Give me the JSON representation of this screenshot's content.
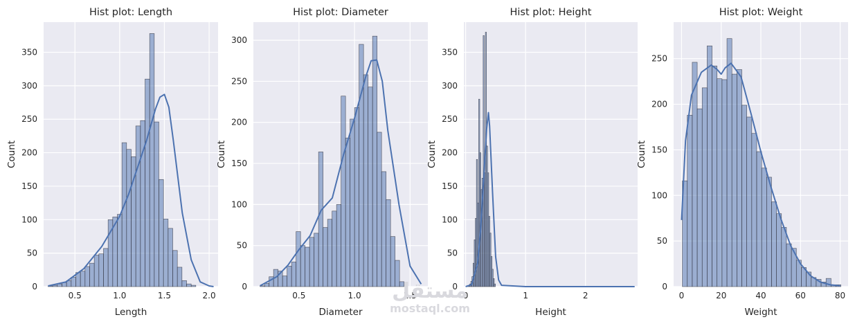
{
  "watermark": {
    "logo_text": "مستقل",
    "url": "mostaql.com"
  },
  "colors": {
    "background": "#eaeaf2",
    "grid": "#ffffff",
    "bar_fill": "#4c72b0",
    "bar_alpha": 0.5,
    "bar_edge": "#2f2f3a",
    "kde": "#4c72b0",
    "text": "#262626"
  },
  "chart_data": [
    {
      "type": "bar",
      "title": "Hist plot: Length",
      "xlabel": "Length",
      "ylabel": "Count",
      "xlim": [
        0.15,
        2.1
      ],
      "ylim": [
        0,
        395
      ],
      "xticks": [
        0.5,
        1.0,
        1.5,
        2.0
      ],
      "xtick_labels": [
        "0.5",
        "1.0",
        "1.5",
        "2.0"
      ],
      "yticks": [
        0,
        50,
        100,
        150,
        200,
        250,
        300,
        350
      ],
      "grid": true,
      "bins": {
        "start": 0.2,
        "width": 0.0516
      },
      "values": [
        1,
        2,
        4,
        6,
        9,
        14,
        21,
        23,
        30,
        35,
        47,
        49,
        57,
        100,
        104,
        108,
        215,
        205,
        194,
        240,
        248,
        310,
        378,
        246,
        160,
        101,
        87,
        54,
        29,
        9,
        4,
        2
      ],
      "kde": {
        "x": [
          0.2,
          0.4,
          0.6,
          0.8,
          1.0,
          1.1,
          1.2,
          1.3,
          1.4,
          1.45,
          1.5,
          1.55,
          1.6,
          1.7,
          1.8,
          1.9,
          2.0,
          2.05
        ],
        "y": [
          1,
          7,
          27,
          60,
          105,
          138,
          178,
          218,
          265,
          283,
          287,
          268,
          218,
          110,
          40,
          7,
          1,
          0
        ]
      }
    },
    {
      "type": "bar",
      "title": "Hist plot: Diameter",
      "xlabel": "Diameter",
      "ylabel": "Count",
      "xlim": [
        0.09,
        1.66
      ],
      "ylim": [
        0,
        322
      ],
      "xticks": [
        0.5,
        1.0,
        1.5
      ],
      "xtick_labels": [
        "0.5",
        "1.0",
        "1.5"
      ],
      "yticks": [
        0,
        50,
        100,
        150,
        200,
        250,
        300
      ],
      "grid": true,
      "bins": {
        "start": 0.15,
        "width": 0.0405
      },
      "values": [
        1,
        4,
        12,
        21,
        19,
        13,
        25,
        30,
        67,
        50,
        48,
        60,
        65,
        164,
        72,
        82,
        92,
        100,
        232,
        181,
        204,
        218,
        295,
        258,
        243,
        305,
        188,
        140,
        106,
        61,
        32,
        6
      ],
      "kde": {
        "x": [
          0.15,
          0.3,
          0.4,
          0.5,
          0.6,
          0.7,
          0.8,
          0.9,
          1.0,
          1.1,
          1.15,
          1.2,
          1.25,
          1.3,
          1.4,
          1.5,
          1.6
        ],
        "y": [
          1,
          12,
          26,
          45,
          62,
          93,
          108,
          160,
          205,
          255,
          275,
          276,
          250,
          190,
          100,
          25,
          3
        ]
      }
    },
    {
      "type": "bar",
      "title": "Hist plot: Height",
      "xlabel": "Height",
      "ylabel": "Count",
      "xlim": [
        -0.03,
        2.87
      ],
      "ylim": [
        0,
        395
      ],
      "xticks": [
        0,
        1,
        2
      ],
      "xtick_labels": [
        "0",
        "1",
        "2"
      ],
      "yticks": [
        0,
        50,
        100,
        150,
        200,
        250,
        300,
        350
      ],
      "grid": true,
      "bins": {
        "start": 0.03,
        "width": 0.0187
      },
      "values": [
        1,
        2,
        4,
        8,
        15,
        35,
        70,
        102,
        190,
        125,
        280,
        200,
        145,
        162,
        375,
        170,
        380,
        210,
        170,
        105,
        80,
        45,
        26,
        12,
        4
      ],
      "kde": {
        "x": [
          0.0,
          0.1,
          0.2,
          0.25,
          0.3,
          0.35,
          0.38,
          0.4,
          0.45,
          0.5,
          0.55,
          0.6,
          1.0,
          2.0,
          2.82
        ],
        "y": [
          0,
          3,
          35,
          85,
          160,
          235,
          260,
          240,
          140,
          45,
          10,
          2,
          0,
          0,
          0
        ]
      }
    },
    {
      "type": "bar",
      "title": "Hist plot: Weight",
      "xlabel": "Weight",
      "ylabel": "Count",
      "xlim": [
        -4,
        84
      ],
      "ylim": [
        0,
        290
      ],
      "xticks": [
        0,
        20,
        40,
        60,
        80
      ],
      "xtick_labels": [
        "0",
        "20",
        "40",
        "60",
        "80"
      ],
      "yticks": [
        0,
        50,
        100,
        150,
        200,
        250
      ],
      "grid": true,
      "bins": {
        "start": 0.4,
        "width": 2.5
      },
      "values": [
        116,
        188,
        246,
        195,
        218,
        264,
        242,
        228,
        227,
        272,
        233,
        238,
        199,
        186,
        168,
        148,
        130,
        120,
        93,
        80,
        65,
        47,
        42,
        29,
        21,
        16,
        10,
        8,
        5,
        9,
        2,
        2
      ],
      "kde": {
        "x": [
          0,
          2,
          5,
          10,
          15,
          18,
          20,
          22,
          25,
          30,
          35,
          40,
          45,
          50,
          55,
          60,
          65,
          70,
          75,
          80
        ],
        "y": [
          73,
          160,
          210,
          235,
          243,
          238,
          233,
          240,
          245,
          230,
          190,
          148,
          110,
          75,
          45,
          25,
          12,
          5,
          2,
          1
        ]
      }
    }
  ]
}
